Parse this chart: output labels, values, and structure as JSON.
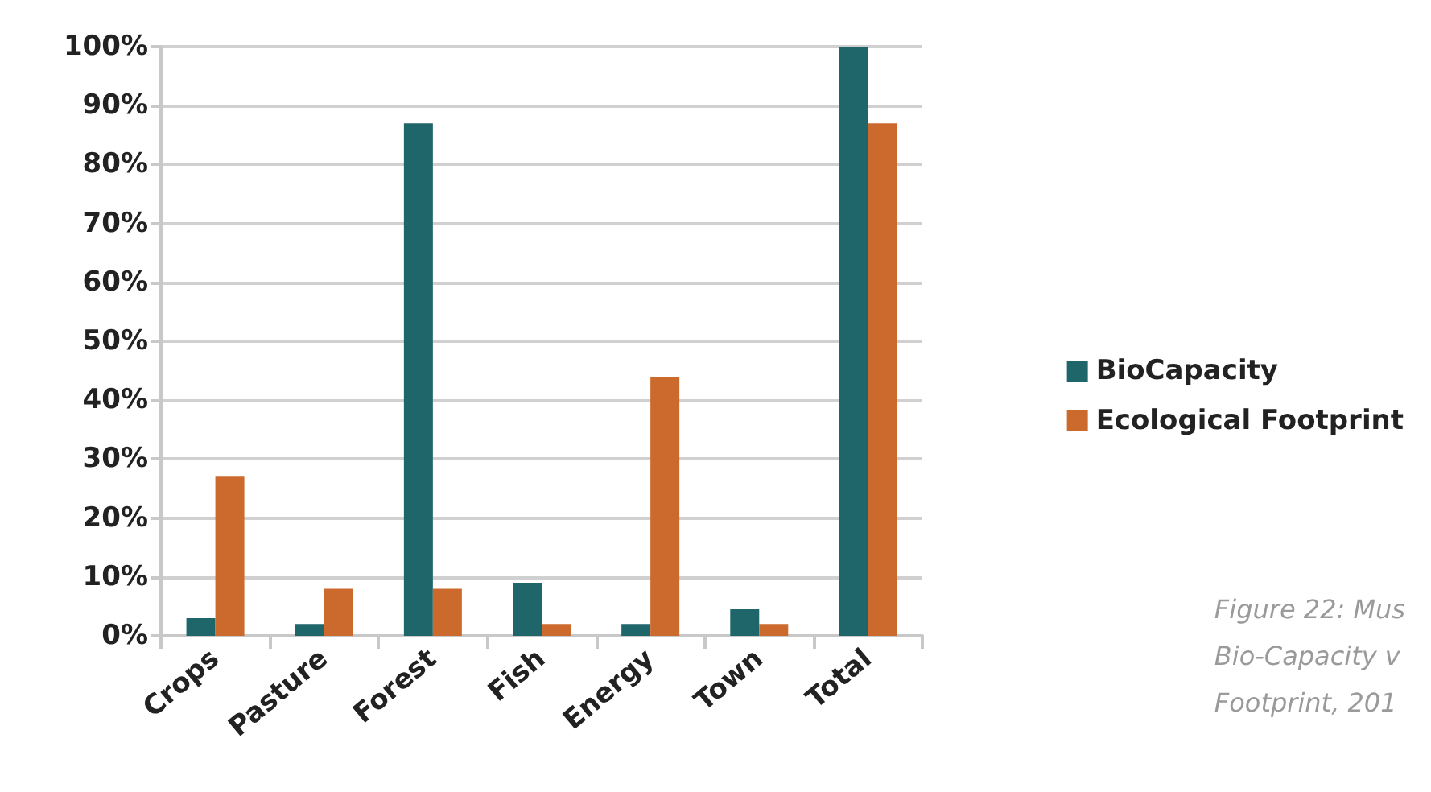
{
  "chart_data": {
    "type": "bar",
    "categories": [
      "Crops",
      "Pasture",
      "Forest",
      "Fish",
      "Energy",
      "Town",
      "Total"
    ],
    "series": [
      {
        "name": "BioCapacity",
        "color": "#1e666a",
        "values": [
          3,
          2,
          87,
          9,
          2,
          4.5,
          100
        ]
      },
      {
        "name": "Ecological Footprint",
        "color": "#cc6a2e",
        "values": [
          27,
          8,
          8,
          2,
          44,
          2,
          87
        ]
      }
    ],
    "ylim": [
      0,
      100
    ],
    "yticks": [
      {
        "value": 0,
        "label": "0%"
      },
      {
        "value": 10,
        "label": "10%"
      },
      {
        "value": 20,
        "label": "20%"
      },
      {
        "value": 30,
        "label": "30%"
      },
      {
        "value": 40,
        "label": "40%"
      },
      {
        "value": 50,
        "label": "50%"
      },
      {
        "value": 60,
        "label": "60%"
      },
      {
        "value": 70,
        "label": "70%"
      },
      {
        "value": 80,
        "label": "80%"
      },
      {
        "value": 90,
        "label": "90%"
      },
      {
        "value": 100,
        "label": "100%"
      }
    ],
    "grid": "y",
    "legend": "right",
    "annotations": [
      "Figure 22: Mus",
      "Bio-Capacity v",
      "Footprint, 201"
    ]
  }
}
